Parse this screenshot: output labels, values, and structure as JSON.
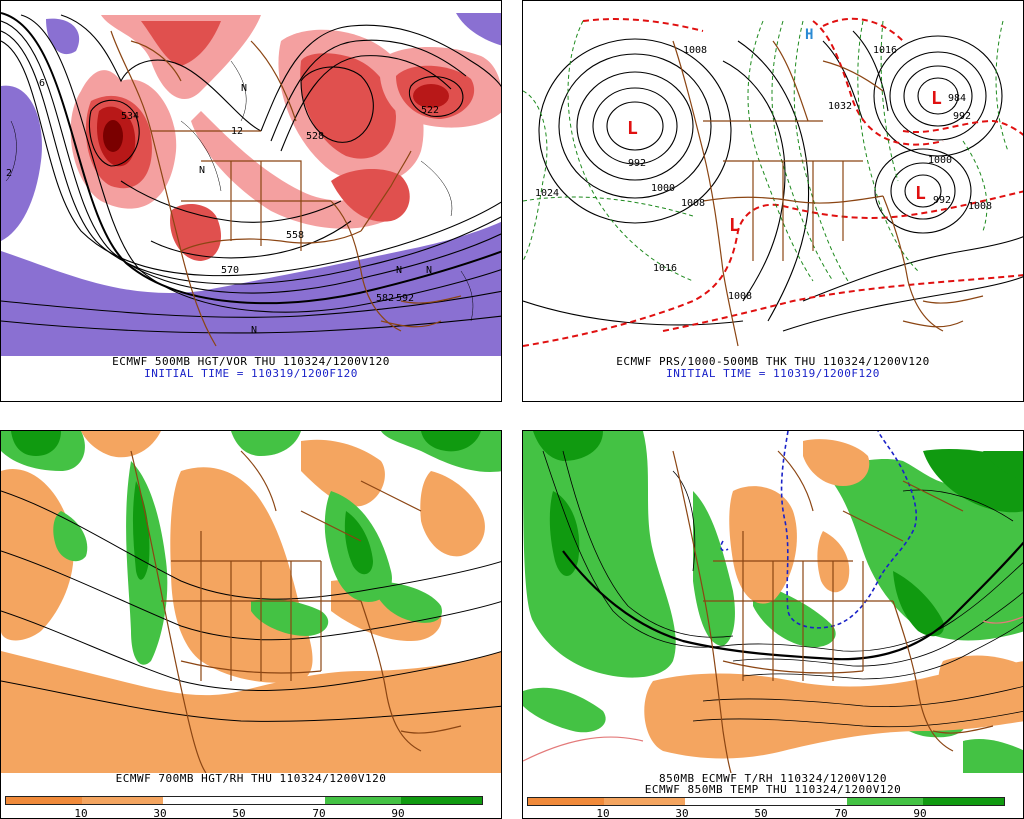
{
  "panels": {
    "top_left": {
      "caption_line1": "ECMWF 500MB HGT/VOR THU 110324/1200V120",
      "caption_line2": "INITIAL TIME = 110319/1200F120",
      "contour_labels": [
        "534",
        "528",
        "522",
        "558",
        "570",
        "582",
        "592",
        "2",
        "6",
        "12"
      ],
      "marks": [
        "N",
        "N",
        "N",
        "N",
        "N"
      ]
    },
    "top_right": {
      "caption_line1": "ECMWF PRS/1000-500MB THK THU 110324/1200V120",
      "caption_line2": "INITIAL TIME = 110319/1200F120",
      "isobar_labels": [
        "992",
        "1000",
        "1008",
        "1016",
        "1024",
        "1008",
        "1032",
        "1016",
        "984",
        "992",
        "1000",
        "1008",
        "992",
        "1008"
      ],
      "low_marker": "L",
      "high_marker": "H"
    },
    "bottom_left": {
      "caption_line1": "ECMWF 700MB HGT/RH THU 110324/1200V120",
      "colorbar_ticks": [
        "10",
        "30",
        "50",
        "70",
        "90"
      ]
    },
    "bottom_right": {
      "caption_line1": "850MB ECMWF T/RH 110324/1200V120",
      "caption_line2": "ECMWF 850MB TEMP THU 110324/1200V120",
      "colorbar_ticks": [
        "10",
        "30",
        "50",
        "70",
        "90"
      ]
    }
  },
  "colors": {
    "vorticity_light": "#f4a0a0",
    "vorticity_mid": "#e0504e",
    "vorticity_dark": "#b81818",
    "vorticity_max": "#7a0000",
    "ridge_purple": "#8a70d2",
    "rh_dry": "#f4a560",
    "rh_moist": "#44c244",
    "rh_wet": "#109a10",
    "border_brown": "#8b4513",
    "thickness_red": "#e01010",
    "thickness_green": "#1e8a1e",
    "temp_blue": "#1a22c8"
  }
}
